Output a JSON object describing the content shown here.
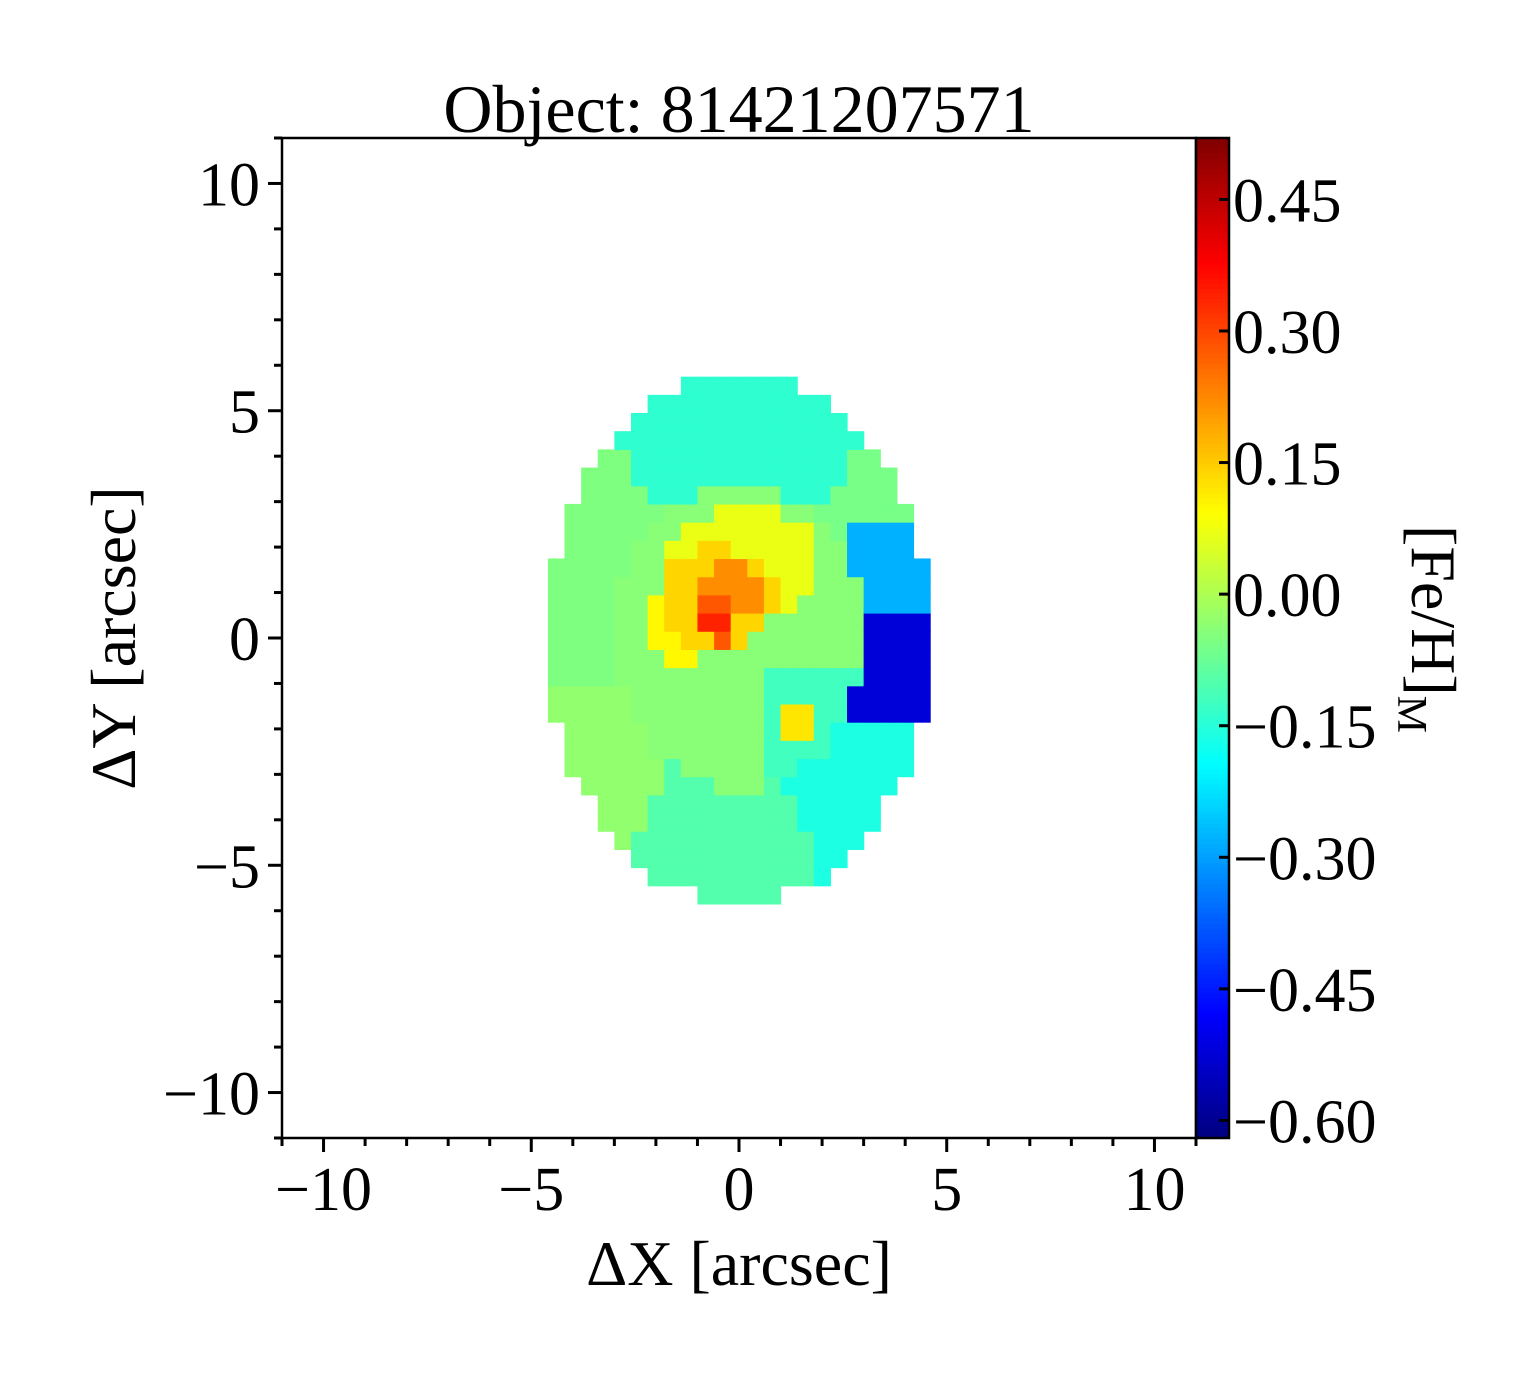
{
  "chart_data": {
    "type": "heatmap",
    "title": "Object: 81421207571",
    "xlabel": "ΔX [arcsec]",
    "ylabel": "ΔY [arcsec]",
    "xlim": [
      -11,
      11
    ],
    "ylim": [
      -11,
      11
    ],
    "xticks": [
      {
        "value": -10,
        "label": "−10"
      },
      {
        "value": -5,
        "label": "−5"
      },
      {
        "value": 0,
        "label": "0"
      },
      {
        "value": 5,
        "label": "5"
      },
      {
        "value": 10,
        "label": "10"
      }
    ],
    "yticks": [
      {
        "value": 10,
        "label": "10"
      },
      {
        "value": 5,
        "label": "5"
      },
      {
        "value": 0,
        "label": "0"
      },
      {
        "value": -5,
        "label": "−5"
      },
      {
        "value": -10,
        "label": "−10"
      }
    ],
    "colorbar": {
      "label": "[Fe/H]",
      "label_subscript": "M",
      "colormap": "jet",
      "range": [
        -0.62,
        0.52
      ],
      "ticks": [
        {
          "value": 0.45,
          "label": "0.45"
        },
        {
          "value": 0.3,
          "label": "0.30"
        },
        {
          "value": 0.15,
          "label": "0.15"
        },
        {
          "value": 0.0,
          "label": "0.00"
        },
        {
          "value": -0.15,
          "label": "−0.15"
        },
        {
          "value": -0.3,
          "label": "−0.30"
        },
        {
          "value": -0.45,
          "label": "−0.45"
        },
        {
          "value": -0.6,
          "label": "−0.60"
        }
      ]
    },
    "map": {
      "center": [
        0,
        0
      ],
      "semi_axis_x": 4.6,
      "semi_axis_y": 5.85,
      "pixel_size": 0.4,
      "regions": [
        {
          "name": "outer-north",
          "kind": "sector",
          "angle_from": 55,
          "angle_to": 125,
          "r_min": 3.2,
          "value": -0.14
        },
        {
          "name": "outer-north-east",
          "kind": "sector",
          "angle_from": 25,
          "angle_to": 55,
          "r_min": 3.2,
          "value": -0.06
        },
        {
          "name": "outer-north-west",
          "kind": "sector",
          "angle_from": 125,
          "angle_to": 195,
          "r_min": 3.2,
          "value": -0.05
        },
        {
          "name": "outer-south-west",
          "kind": "sector",
          "angle_from": 195,
          "angle_to": 240,
          "r_min": 3.0,
          "value": -0.03
        },
        {
          "name": "outer-south",
          "kind": "sector",
          "angle_from": 240,
          "angle_to": 290,
          "r_min": 3.0,
          "value": -0.1
        },
        {
          "name": "outer-south-east",
          "kind": "sector",
          "angle_from": 290,
          "angle_to": 335,
          "r_min": 2.6,
          "value": -0.16
        },
        {
          "name": "east-upper",
          "kind": "box",
          "x": [
            2.6,
            5.0
          ],
          "y": [
            0.5,
            2.6
          ],
          "value": -0.28
        },
        {
          "name": "east-lower",
          "kind": "box",
          "x": [
            2.5,
            5.0
          ],
          "y": [
            -2.0,
            0.5
          ],
          "value": -0.52
        },
        {
          "name": "inner-ring",
          "kind": "ellipse",
          "rx": 3.0,
          "ry": 3.3,
          "value": -0.04
        },
        {
          "name": "inner-south-east",
          "kind": "ellipse_part",
          "rx": 3.0,
          "ry": 3.3,
          "x_min": 0.6,
          "y_max": -0.8,
          "value": -0.12
        },
        {
          "name": "core-north",
          "kind": "ellipse",
          "cx": 0.1,
          "cy": 1.6,
          "rx": 1.9,
          "ry": 1.3,
          "value": 0.07
        },
        {
          "name": "core-west",
          "kind": "ellipse",
          "cx": -1.5,
          "cy": 0.2,
          "rx": 0.9,
          "ry": 0.7,
          "value": 0.1
        },
        {
          "name": "core",
          "kind": "ellipse",
          "cx": -0.5,
          "cy": 0.9,
          "rx": 1.4,
          "ry": 1.1,
          "value": 0.14
        },
        {
          "name": "core-inner",
          "kind": "ellipse",
          "cx": -0.3,
          "cy": 1.0,
          "rx": 0.8,
          "ry": 0.6,
          "value": 0.22
        },
        {
          "name": "nucleus",
          "kind": "ellipse",
          "cx": -0.5,
          "cy": 0.5,
          "rx": 0.5,
          "ry": 0.6,
          "value": 0.28
        },
        {
          "name": "nucleus-peak",
          "kind": "ellipse",
          "cx": -0.55,
          "cy": 0.4,
          "rx": 0.3,
          "ry": 0.35,
          "value": 0.34
        },
        {
          "name": "knot-south-east",
          "kind": "ellipse",
          "cx": 1.4,
          "cy": -1.9,
          "rx": 0.5,
          "ry": 0.45,
          "value": 0.12
        }
      ]
    }
  }
}
